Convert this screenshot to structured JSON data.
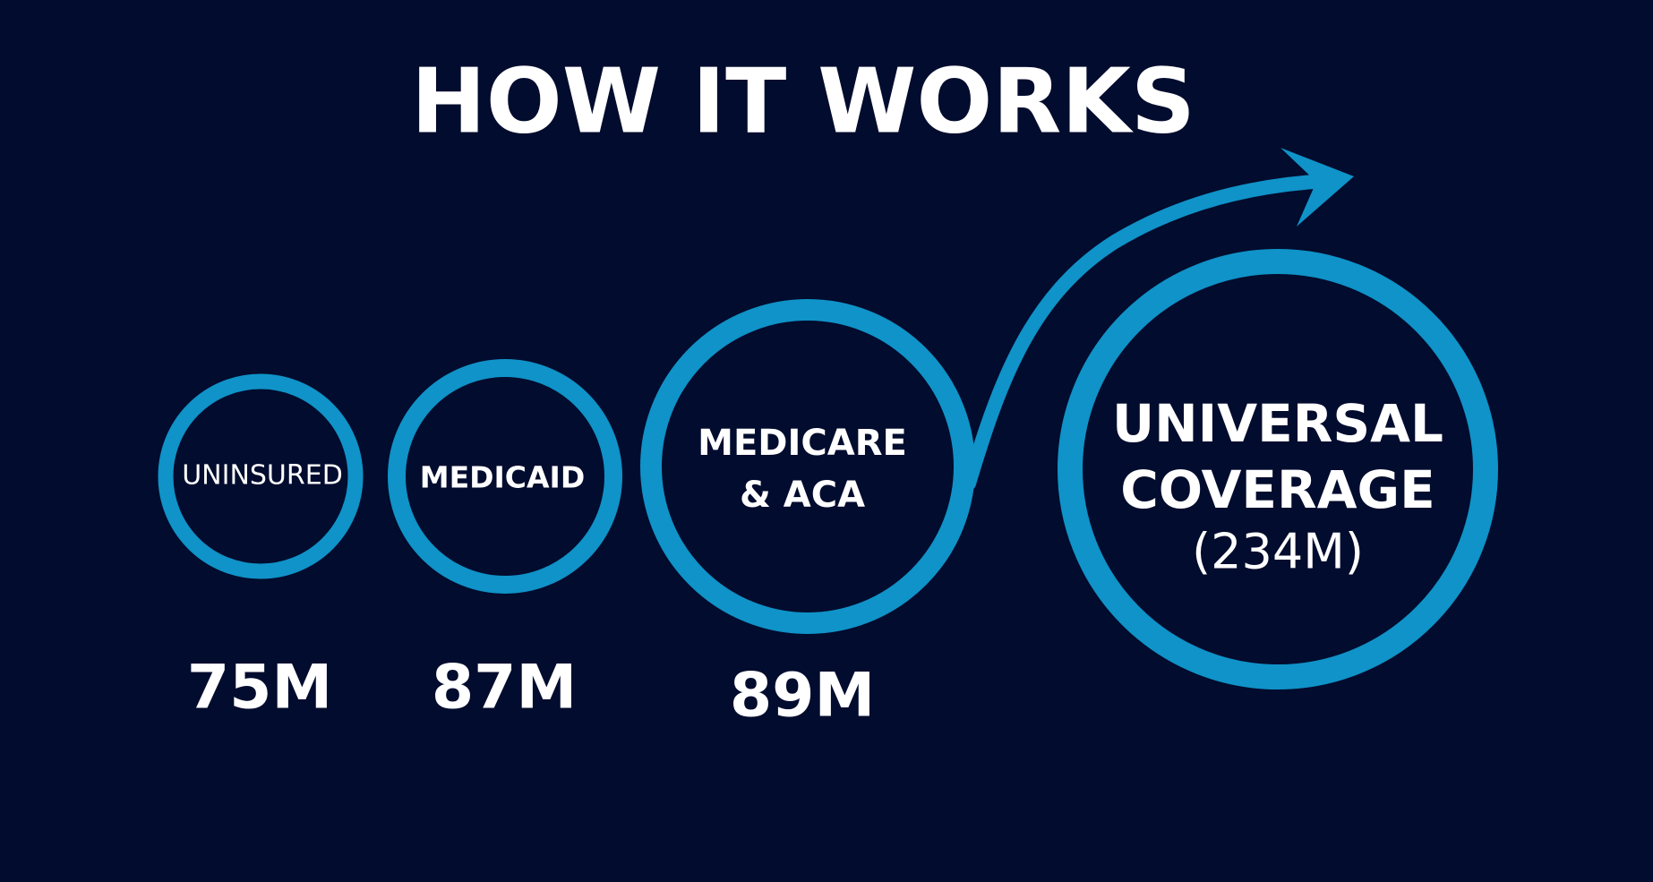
{
  "header": {
    "title": "HOW IT WORKS"
  },
  "nodes": [
    {
      "label": [
        "UNINSURED"
      ],
      "amount": "75M"
    },
    {
      "label": [
        "MEDICAID"
      ],
      "amount": "87M"
    },
    {
      "label": [
        "MEDICARE",
        "& ACA"
      ],
      "amount": "89M"
    },
    {
      "label": [
        "UNIVERSAL",
        "COVERAGE"
      ],
      "amount": "(234M)"
    }
  ]
}
